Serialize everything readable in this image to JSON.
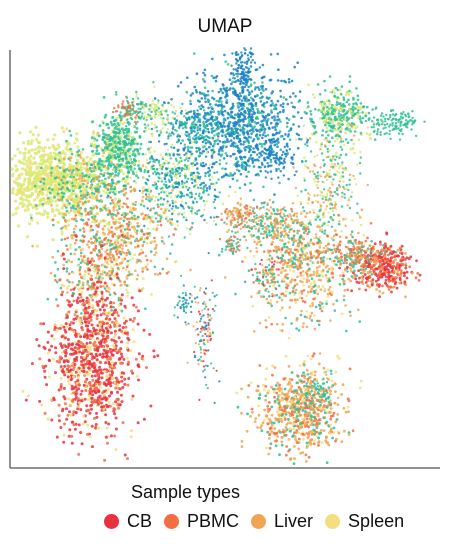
{
  "chart_data": {
    "type": "scatter",
    "title": "UMAP",
    "xlabel": "",
    "ylabel": "",
    "legend_title": "Sample types",
    "legend_position": "bottom",
    "grid": false,
    "series": [
      {
        "name": "CB",
        "color": "#e8333f"
      },
      {
        "name": "PBMC",
        "color": "#f46d43"
      },
      {
        "name": "Liver",
        "color": "#f1a553"
      },
      {
        "name": "Spleen",
        "color": "#f5de7e"
      }
    ],
    "other_colors": [
      "#d8ea72",
      "#2fbf95",
      "#1a83c4"
    ]
  }
}
